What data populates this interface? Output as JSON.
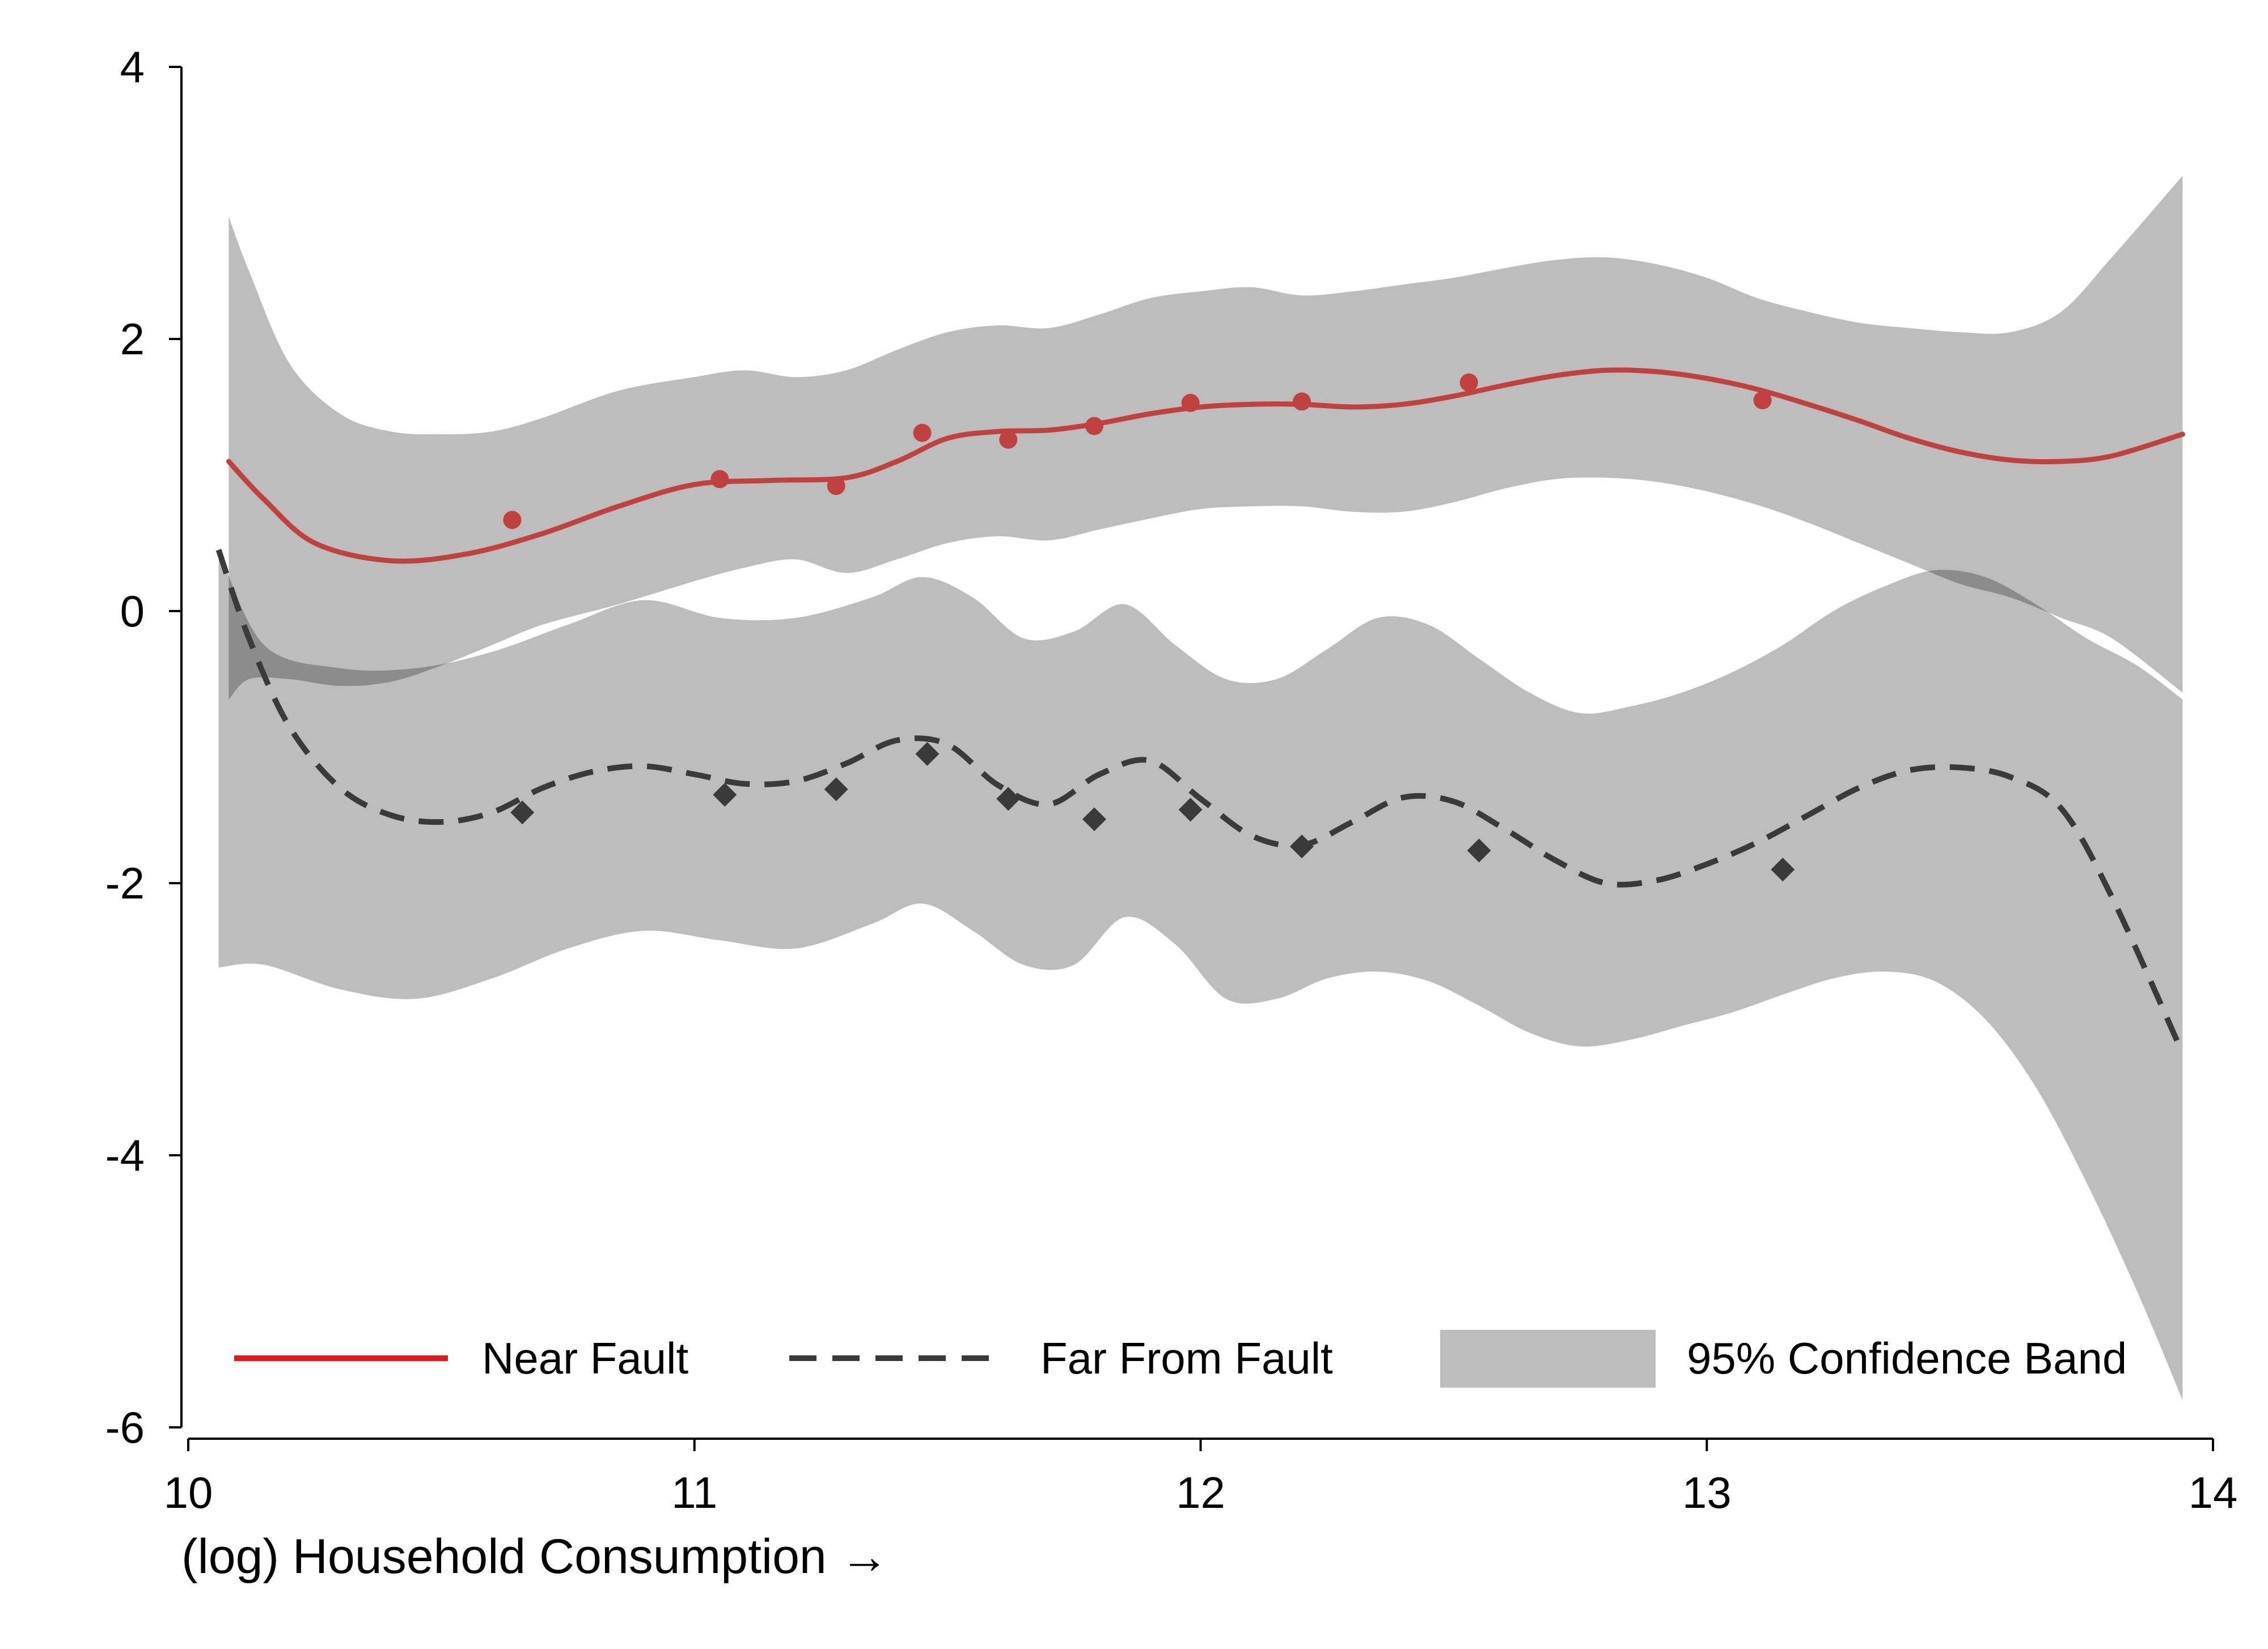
{
  "chart_data": {
    "type": "line",
    "title": "",
    "xlabel": "(log) Household Consumption →",
    "ylabel": "",
    "xlim": [
      10,
      14
    ],
    "ylim": [
      -6,
      4
    ],
    "xticks": [
      10,
      11,
      12,
      13,
      14
    ],
    "yticks": [
      4,
      2,
      0,
      -2,
      -4,
      -6
    ],
    "xtick_labels": [
      "10",
      "11",
      "12",
      "13",
      "14"
    ],
    "ytick_labels": [
      "4",
      "2",
      "0",
      "-2",
      "-4",
      "-6"
    ],
    "grid": false,
    "legend_position": "bottom",
    "colors": {
      "near": "#c0413f",
      "near_legend": "#e8141d",
      "far": "#3a3a3a",
      "band": "#bdbdbd",
      "band_overlap": "#a6a6a6",
      "markers_far": "#3a3a3a"
    },
    "legend": [
      {
        "key": "near",
        "label": "Near Fault",
        "style": "solid-line"
      },
      {
        "key": "far",
        "label": "Far From Fault",
        "style": "dashed-line"
      },
      {
        "key": "band",
        "label": "95% Confidence Band",
        "style": "area"
      }
    ],
    "series": [
      {
        "key": "near",
        "kind": "fit-line",
        "x": [
          10.08,
          10.15,
          10.25,
          10.4,
          10.55,
          10.7,
          10.85,
          11.0,
          11.15,
          11.3,
          11.4,
          11.5,
          11.6,
          11.7,
          11.8,
          11.9,
          12.0,
          12.1,
          12.2,
          12.3,
          12.4,
          12.5,
          12.6,
          12.7,
          12.8,
          12.9,
          13.0,
          13.1,
          13.2,
          13.3,
          13.4,
          13.5,
          13.6,
          13.7,
          13.8,
          13.94
        ],
        "y": [
          1.1,
          0.82,
          0.5,
          0.37,
          0.42,
          0.57,
          0.77,
          0.93,
          0.96,
          0.98,
          1.1,
          1.27,
          1.32,
          1.33,
          1.38,
          1.45,
          1.5,
          1.52,
          1.52,
          1.5,
          1.52,
          1.58,
          1.66,
          1.73,
          1.77,
          1.76,
          1.71,
          1.63,
          1.52,
          1.4,
          1.27,
          1.17,
          1.11,
          1.1,
          1.14,
          1.3
        ]
      },
      {
        "key": "near_band",
        "kind": "band",
        "x": [
          10.08,
          10.12,
          10.2,
          10.3,
          10.4,
          10.5,
          10.6,
          10.7,
          10.85,
          11.0,
          11.1,
          11.2,
          11.3,
          11.4,
          11.5,
          11.6,
          11.7,
          11.8,
          11.9,
          12.0,
          12.1,
          12.2,
          12.3,
          12.4,
          12.5,
          12.6,
          12.7,
          12.8,
          12.9,
          13.0,
          13.1,
          13.2,
          13.3,
          13.4,
          13.5,
          13.6,
          13.7,
          13.8,
          13.94
        ],
        "upper": [
          2.9,
          2.5,
          1.82,
          1.45,
          1.32,
          1.3,
          1.32,
          1.42,
          1.62,
          1.72,
          1.77,
          1.72,
          1.77,
          1.92,
          2.05,
          2.1,
          2.08,
          2.18,
          2.3,
          2.35,
          2.38,
          2.32,
          2.35,
          2.4,
          2.45,
          2.52,
          2.58,
          2.6,
          2.55,
          2.45,
          2.3,
          2.2,
          2.12,
          2.08,
          2.05,
          2.05,
          2.2,
          2.6,
          3.2
        ],
        "lower": [
          -0.65,
          -0.5,
          -0.5,
          -0.55,
          -0.52,
          -0.4,
          -0.25,
          -0.1,
          0.05,
          0.22,
          0.32,
          0.38,
          0.28,
          0.38,
          0.5,
          0.55,
          0.52,
          0.6,
          0.68,
          0.75,
          0.77,
          0.77,
          0.73,
          0.73,
          0.8,
          0.9,
          0.97,
          0.98,
          0.95,
          0.88,
          0.78,
          0.65,
          0.5,
          0.35,
          0.2,
          0.1,
          -0.05,
          -0.2,
          -0.6
        ]
      },
      {
        "key": "far",
        "kind": "fit-line",
        "x": [
          10.06,
          10.12,
          10.2,
          10.3,
          10.4,
          10.5,
          10.6,
          10.7,
          10.8,
          10.9,
          11.0,
          11.1,
          11.2,
          11.3,
          11.4,
          11.5,
          11.6,
          11.7,
          11.8,
          11.9,
          12.0,
          12.1,
          12.2,
          12.3,
          12.4,
          12.5,
          12.6,
          12.7,
          12.8,
          12.9,
          13.0,
          13.1,
          13.2,
          13.3,
          13.4,
          13.5,
          13.6,
          13.7,
          13.8,
          13.94
        ],
        "y": [
          0.45,
          -0.2,
          -0.85,
          -1.3,
          -1.5,
          -1.55,
          -1.48,
          -1.3,
          -1.18,
          -1.14,
          -1.2,
          -1.27,
          -1.25,
          -1.12,
          -0.95,
          -0.98,
          -1.28,
          -1.42,
          -1.2,
          -1.1,
          -1.38,
          -1.65,
          -1.72,
          -1.55,
          -1.37,
          -1.4,
          -1.6,
          -1.83,
          -2.0,
          -1.98,
          -1.86,
          -1.7,
          -1.5,
          -1.3,
          -1.17,
          -1.15,
          -1.22,
          -1.45,
          -2.1,
          -3.25
        ]
      },
      {
        "key": "far_band",
        "kind": "band",
        "x": [
          10.06,
          10.15,
          10.3,
          10.45,
          10.6,
          10.75,
          10.9,
          11.05,
          11.2,
          11.35,
          11.45,
          11.55,
          11.65,
          11.75,
          11.85,
          11.95,
          12.05,
          12.15,
          12.25,
          12.35,
          12.45,
          12.55,
          12.65,
          12.75,
          12.85,
          12.95,
          13.05,
          13.15,
          13.25,
          13.35,
          13.45,
          13.55,
          13.65,
          13.75,
          13.85,
          13.94
        ],
        "upper": [
          0.45,
          -0.25,
          -0.42,
          -0.42,
          -0.3,
          -0.1,
          0.08,
          -0.05,
          -0.05,
          0.1,
          0.25,
          0.1,
          -0.2,
          -0.15,
          0.05,
          -0.25,
          -0.5,
          -0.5,
          -0.28,
          -0.05,
          -0.1,
          -0.35,
          -0.6,
          -0.75,
          -0.7,
          -0.6,
          -0.45,
          -0.25,
          0.0,
          0.18,
          0.3,
          0.25,
          0.05,
          -0.2,
          -0.4,
          -0.65
        ],
        "lower": [
          -2.62,
          -2.6,
          -2.78,
          -2.85,
          -2.7,
          -2.48,
          -2.35,
          -2.42,
          -2.48,
          -2.3,
          -2.15,
          -2.35,
          -2.6,
          -2.6,
          -2.25,
          -2.45,
          -2.85,
          -2.85,
          -2.7,
          -2.65,
          -2.72,
          -2.9,
          -3.1,
          -3.2,
          -3.15,
          -3.05,
          -2.95,
          -2.82,
          -2.7,
          -2.65,
          -2.72,
          -3.0,
          -3.5,
          -4.2,
          -5.0,
          -5.8
        ]
      },
      {
        "key": "near_points",
        "kind": "scatter",
        "marker": "circle",
        "x": [
          10.64,
          11.05,
          11.28,
          11.45,
          11.62,
          11.79,
          11.98,
          12.2,
          12.53,
          13.11
        ],
        "y": [
          0.67,
          0.97,
          0.92,
          1.31,
          1.26,
          1.36,
          1.53,
          1.54,
          1.68,
          1.55
        ]
      },
      {
        "key": "far_points",
        "kind": "scatter",
        "marker": "diamond",
        "x": [
          10.66,
          11.06,
          11.28,
          11.46,
          11.62,
          11.79,
          11.98,
          12.2,
          12.55,
          13.15
        ],
        "y": [
          -1.48,
          -1.35,
          -1.31,
          -1.05,
          -1.38,
          -1.53,
          -1.46,
          -1.73,
          -1.76,
          -1.9
        ]
      }
    ]
  }
}
